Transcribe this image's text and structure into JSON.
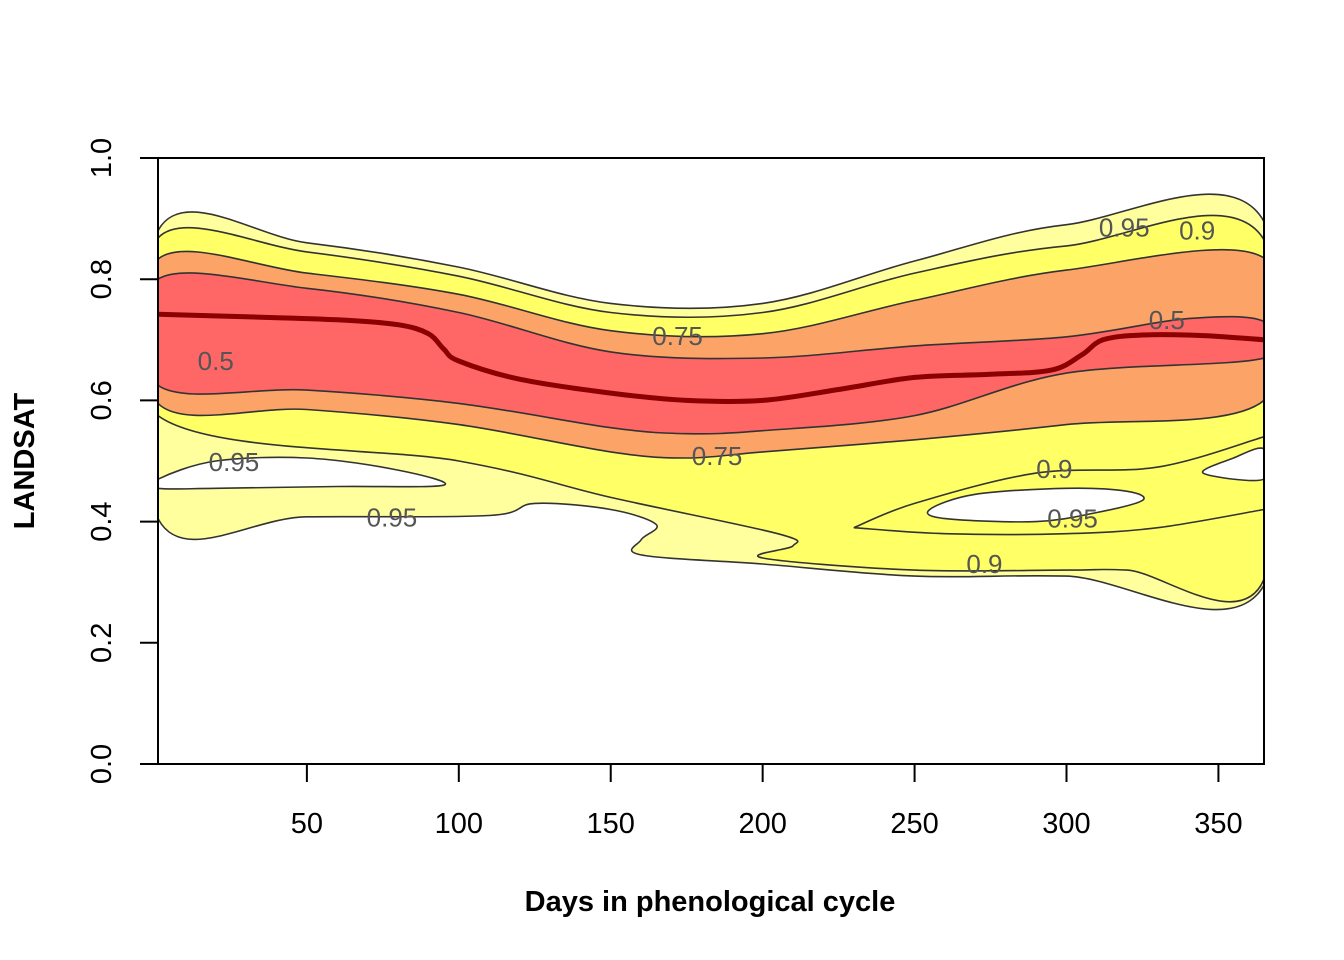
{
  "chart_data": {
    "type": "contour",
    "title": "",
    "xlabel": "Days in phenological cycle",
    "ylabel": "LANDSAT",
    "xlim": [
      1,
      365
    ],
    "ylim": [
      0,
      1
    ],
    "x_ticks": [
      50,
      100,
      150,
      200,
      250,
      300,
      350
    ],
    "y_ticks": [
      0.0,
      0.2,
      0.4,
      0.6,
      0.8,
      1.0
    ],
    "y_tick_labels": [
      "0.0",
      "0.2",
      "0.4",
      "0.6",
      "0.8",
      "1.0"
    ],
    "colors": {
      "level_0_95": "#ffff9e",
      "level_0_9": "#ffff66",
      "level_0_75": "#fca468",
      "level_0_5": "#ff6666",
      "median_line": "#8b0000",
      "contour_line": "#333333"
    },
    "bands": [
      {
        "level": 0.95,
        "fill": "#ffff9e",
        "upper": [
          [
            1,
            0.88
          ],
          [
            50,
            0.86
          ],
          [
            100,
            0.82
          ],
          [
            150,
            0.76
          ],
          [
            200,
            0.76
          ],
          [
            250,
            0.83
          ],
          [
            300,
            0.89
          ],
          [
            365,
            0.895
          ]
        ],
        "lower": [
          [
            365,
            0.295
          ],
          [
            300,
            0.31
          ],
          [
            250,
            0.31
          ],
          [
            200,
            0.33
          ],
          [
            160,
            0.345
          ],
          [
            160,
            0.37
          ],
          [
            165,
            0.395
          ],
          [
            150,
            0.42
          ],
          [
            125,
            0.43
          ],
          [
            110,
            0.41
          ],
          [
            50,
            0.408
          ],
          [
            1,
            0.405
          ]
        ]
      },
      {
        "level": 0.9,
        "fill": "#ffff66",
        "upper": [
          [
            1,
            0.868
          ],
          [
            50,
            0.845
          ],
          [
            100,
            0.805
          ],
          [
            150,
            0.745
          ],
          [
            200,
            0.745
          ],
          [
            250,
            0.81
          ],
          [
            300,
            0.855
          ],
          [
            365,
            0.865
          ]
        ],
        "lower": [
          [
            365,
            0.305
          ],
          [
            320,
            0.32
          ],
          [
            300,
            0.32
          ],
          [
            250,
            0.32
          ],
          [
            200,
            0.34
          ],
          [
            210,
            0.36
          ],
          [
            205,
            0.38
          ],
          [
            150,
            0.44
          ],
          [
            100,
            0.5
          ],
          [
            1,
            0.575
          ]
        ]
      },
      {
        "level": 0.75,
        "fill": "#fca468",
        "upper": [
          [
            1,
            0.833
          ],
          [
            50,
            0.81
          ],
          [
            100,
            0.775
          ],
          [
            150,
            0.715
          ],
          [
            200,
            0.71
          ],
          [
            250,
            0.765
          ],
          [
            300,
            0.815
          ],
          [
            365,
            0.835
          ]
        ],
        "lower": [
          [
            365,
            0.6
          ],
          [
            300,
            0.56
          ],
          [
            250,
            0.535
          ],
          [
            200,
            0.515
          ],
          [
            175,
            0.505
          ],
          [
            150,
            0.515
          ],
          [
            100,
            0.56
          ],
          [
            50,
            0.585
          ],
          [
            1,
            0.595
          ]
        ]
      },
      {
        "level": 0.5,
        "fill": "#ff6666",
        "upper": [
          [
            1,
            0.8
          ],
          [
            50,
            0.785
          ],
          [
            100,
            0.745
          ],
          [
            150,
            0.68
          ],
          [
            200,
            0.67
          ],
          [
            250,
            0.69
          ],
          [
            300,
            0.705
          ],
          [
            340,
            0.735
          ],
          [
            365,
            0.73
          ]
        ],
        "lower": [
          [
            365,
            0.67
          ],
          [
            300,
            0.645
          ],
          [
            250,
            0.575
          ],
          [
            200,
            0.55
          ],
          [
            175,
            0.545
          ],
          [
            150,
            0.555
          ],
          [
            100,
            0.595
          ],
          [
            50,
            0.617
          ],
          [
            1,
            0.625
          ]
        ]
      }
    ],
    "holes": [
      {
        "level": 0.95,
        "points": [
          [
            1,
            0.47
          ],
          [
            20,
            0.5
          ],
          [
            50,
            0.505
          ],
          [
            80,
            0.485
          ],
          [
            95,
            0.46
          ],
          [
            60,
            0.458
          ],
          [
            20,
            0.455
          ],
          [
            1,
            0.455
          ]
        ]
      },
      {
        "level": 0.95,
        "points": [
          [
            255,
            0.42
          ],
          [
            270,
            0.445
          ],
          [
            300,
            0.455
          ],
          [
            320,
            0.45
          ],
          [
            325,
            0.435
          ],
          [
            310,
            0.415
          ],
          [
            290,
            0.4
          ],
          [
            260,
            0.405
          ]
        ]
      },
      {
        "level": 0.95,
        "points": [
          [
            365,
            0.47
          ],
          [
            345,
            0.48
          ],
          [
            355,
            0.505
          ],
          [
            365,
            0.52
          ]
        ]
      }
    ],
    "inner_contours": [
      {
        "level": 0.9,
        "points": [
          [
            230,
            0.39
          ],
          [
            250,
            0.43
          ],
          [
            290,
            0.48
          ],
          [
            330,
            0.49
          ],
          [
            365,
            0.54
          ]
        ]
      },
      {
        "level": 0.9,
        "points": [
          [
            230,
            0.39
          ],
          [
            260,
            0.38
          ],
          [
            300,
            0.38
          ],
          [
            330,
            0.39
          ],
          [
            365,
            0.42
          ]
        ]
      }
    ],
    "median": [
      [
        1,
        0.742
      ],
      [
        30,
        0.738
      ],
      [
        60,
        0.733
      ],
      [
        80,
        0.725
      ],
      [
        90,
        0.71
      ],
      [
        95,
        0.685
      ],
      [
        100,
        0.665
      ],
      [
        120,
        0.635
      ],
      [
        150,
        0.612
      ],
      [
        175,
        0.6
      ],
      [
        200,
        0.6
      ],
      [
        225,
        0.618
      ],
      [
        250,
        0.638
      ],
      [
        275,
        0.643
      ],
      [
        295,
        0.65
      ],
      [
        305,
        0.675
      ],
      [
        312,
        0.7
      ],
      [
        325,
        0.708
      ],
      [
        345,
        0.707
      ],
      [
        365,
        0.7
      ]
    ],
    "contour_labels": [
      {
        "text": "0.5",
        "x": 20,
        "y": 0.665
      },
      {
        "text": "0.5",
        "x": 333,
        "y": 0.733
      },
      {
        "text": "0.75",
        "x": 172,
        "y": 0.706
      },
      {
        "text": "0.75",
        "x": 185,
        "y": 0.508
      },
      {
        "text": "0.95",
        "x": 26,
        "y": 0.498
      },
      {
        "text": "0.95",
        "x": 78,
        "y": 0.407
      },
      {
        "text": "0.95",
        "x": 319,
        "y": 0.885
      },
      {
        "text": "0.95",
        "x": 302,
        "y": 0.405
      },
      {
        "text": "0.9",
        "x": 343,
        "y": 0.88
      },
      {
        "text": "0.9",
        "x": 296,
        "y": 0.487
      },
      {
        "text": "0.9",
        "x": 273,
        "y": 0.33
      }
    ]
  }
}
